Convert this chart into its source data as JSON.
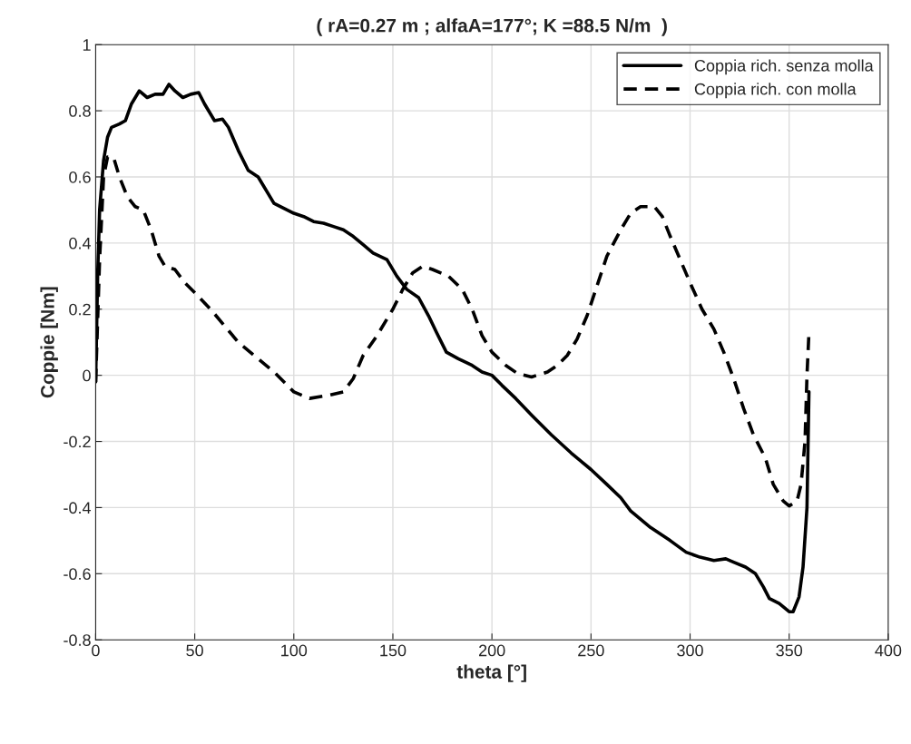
{
  "chart_data": {
    "type": "line",
    "title": "( rA=0.27 m ; alfaA=177°; K =88.5 N/m  )",
    "xlabel": "theta [°]",
    "ylabel": "Coppie [Nm]",
    "xlim": [
      0,
      400
    ],
    "xticks": [
      0,
      50,
      100,
      150,
      200,
      250,
      300,
      350,
      400
    ],
    "ylim": [
      -0.8,
      1
    ],
    "yticks": [
      -0.8,
      -0.6,
      -0.4,
      -0.2,
      0,
      0.2,
      0.4,
      0.6,
      0.8,
      1
    ],
    "grid": true,
    "legend": "top right",
    "series": [
      {
        "name": "Coppia rich. senza molla",
        "color": "#000000",
        "line_style": "solid",
        "x": [
          0,
          1,
          2,
          4,
          6,
          8,
          12,
          15,
          18,
          22,
          26,
          30,
          34,
          37,
          40,
          44,
          48,
          52,
          55,
          60,
          64,
          67,
          72,
          77,
          82,
          90,
          95,
          100,
          105,
          110,
          115,
          120,
          125,
          130,
          135,
          140,
          147,
          152,
          157,
          163,
          168,
          172,
          177,
          183,
          190,
          195,
          200,
          205,
          212,
          220,
          230,
          240,
          250,
          258,
          265,
          270,
          280,
          290,
          298,
          305,
          312,
          318,
          322,
          328,
          333,
          337,
          340,
          345,
          350,
          352,
          355,
          357,
          359,
          360
        ],
        "values": [
          -0.02,
          0.3,
          0.5,
          0.65,
          0.72,
          0.75,
          0.76,
          0.77,
          0.82,
          0.86,
          0.84,
          0.85,
          0.85,
          0.88,
          0.86,
          0.84,
          0.85,
          0.855,
          0.82,
          0.77,
          0.775,
          0.75,
          0.68,
          0.62,
          0.6,
          0.52,
          0.505,
          0.49,
          0.48,
          0.465,
          0.46,
          0.45,
          0.44,
          0.42,
          0.395,
          0.37,
          0.35,
          0.3,
          0.26,
          0.235,
          0.18,
          0.13,
          0.07,
          0.05,
          0.03,
          0.01,
          0.0,
          -0.03,
          -0.07,
          -0.12,
          -0.18,
          -0.235,
          -0.285,
          -0.33,
          -0.37,
          -0.41,
          -0.46,
          -0.5,
          -0.535,
          -0.55,
          -0.56,
          -0.555,
          -0.565,
          -0.58,
          -0.6,
          -0.64,
          -0.675,
          -0.69,
          -0.715,
          -0.715,
          -0.67,
          -0.58,
          -0.4,
          -0.05
        ]
      },
      {
        "name": "Coppia rich. con molla",
        "color": "#000000",
        "line_style": "dashed",
        "x": [
          0,
          2,
          4,
          6,
          9,
          12,
          16,
          20,
          24,
          28,
          32,
          35,
          40,
          45,
          50,
          58,
          65,
          72,
          80,
          90,
          100,
          108,
          118,
          125,
          130,
          135,
          142,
          150,
          155,
          160,
          165,
          170,
          178,
          185,
          190,
          195,
          200,
          207,
          213,
          220,
          228,
          233,
          238,
          243,
          248,
          253,
          258,
          265,
          270,
          275,
          282,
          286,
          290,
          295,
          300,
          306,
          312,
          317,
          322,
          327,
          332,
          338,
          342,
          347,
          350,
          354,
          356,
          358,
          359,
          360
        ],
        "values": [
          -0.02,
          0.35,
          0.6,
          0.66,
          0.66,
          0.6,
          0.54,
          0.51,
          0.5,
          0.44,
          0.36,
          0.33,
          0.32,
          0.28,
          0.25,
          0.2,
          0.15,
          0.1,
          0.06,
          0.01,
          -0.05,
          -0.07,
          -0.06,
          -0.05,
          -0.01,
          0.06,
          0.12,
          0.2,
          0.26,
          0.31,
          0.33,
          0.32,
          0.3,
          0.26,
          0.2,
          0.12,
          0.07,
          0.03,
          0.005,
          -0.005,
          0.01,
          0.03,
          0.06,
          0.11,
          0.18,
          0.27,
          0.36,
          0.44,
          0.49,
          0.51,
          0.51,
          0.48,
          0.42,
          0.35,
          0.28,
          0.2,
          0.14,
          0.07,
          -0.01,
          -0.1,
          -0.18,
          -0.25,
          -0.33,
          -0.38,
          -0.395,
          -0.38,
          -0.33,
          -0.2,
          0.0,
          0.13
        ]
      }
    ]
  }
}
